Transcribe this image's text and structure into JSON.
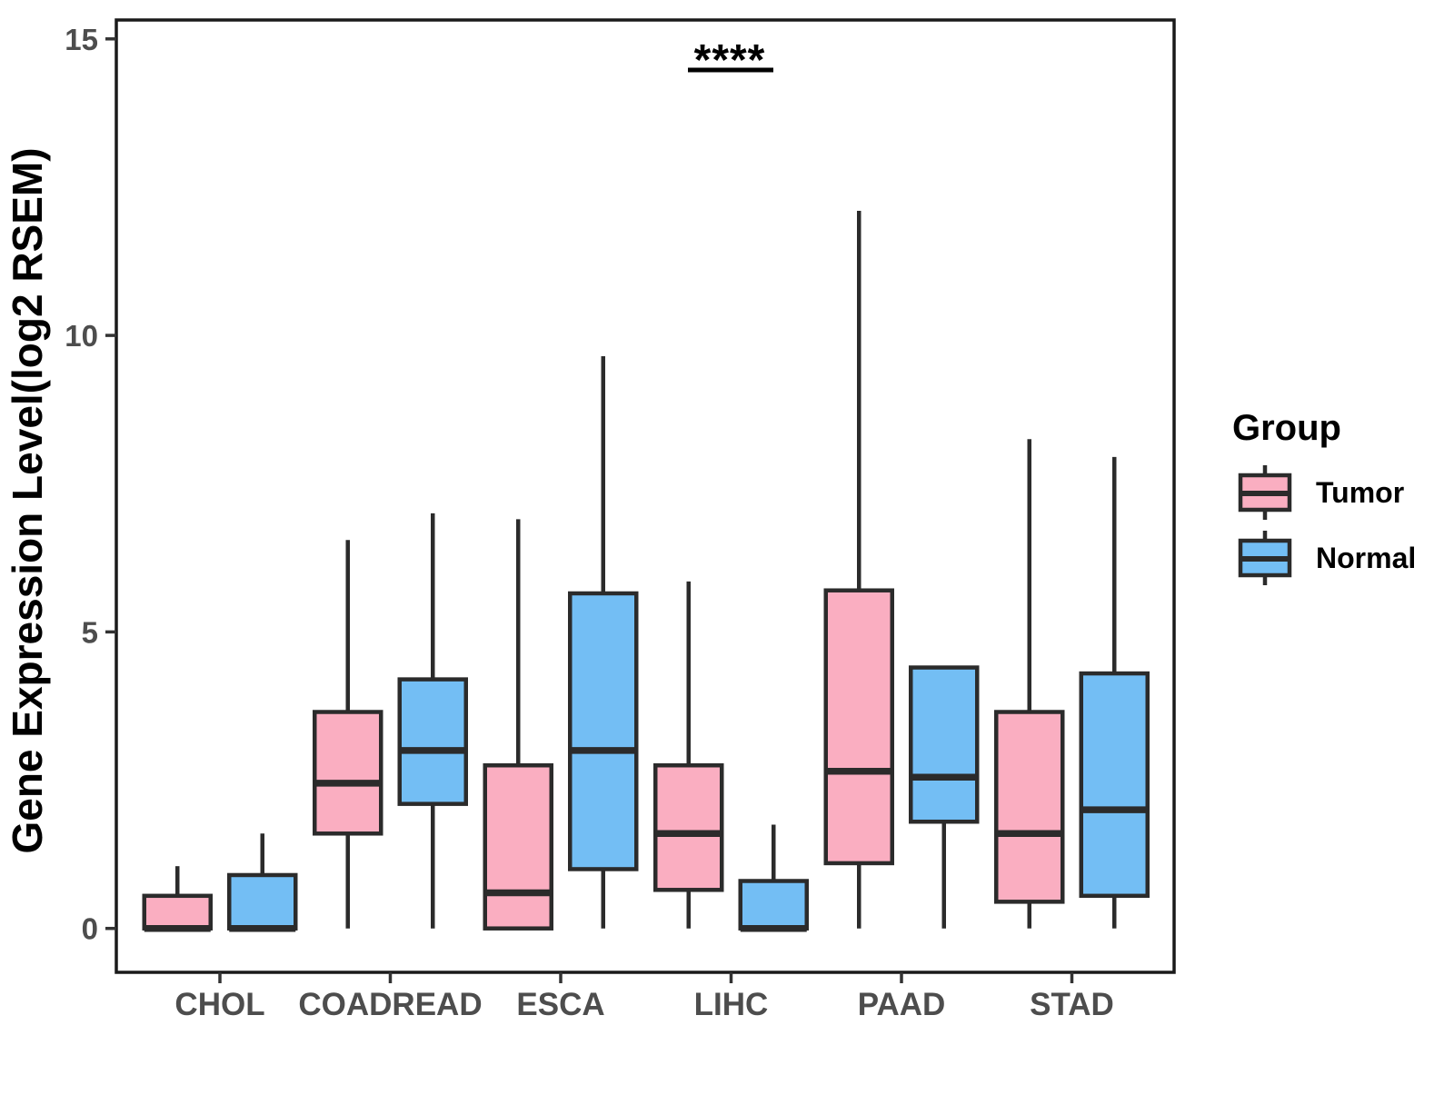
{
  "chart_data": {
    "type": "boxplot",
    "title": "",
    "xlabel": "",
    "ylabel": "Gene Expression Level(log2 RSEM)",
    "ylim": [
      -0.75,
      15.3
    ],
    "yticks": [
      0,
      5,
      10,
      15
    ],
    "categories": [
      "CHOL",
      "COADREAD",
      "ESCA",
      "LIHC",
      "PAAD",
      "STAD"
    ],
    "stat_labels": [
      "min",
      "q1",
      "median",
      "q3",
      "max"
    ],
    "series": [
      {
        "name": "Tumor",
        "color": "#FAAEC1",
        "stats": [
          [
            0,
            0,
            0,
            0.55,
            1.05
          ],
          [
            0,
            1.6,
            2.45,
            3.65,
            6.55
          ],
          [
            0,
            0,
            0.6,
            2.75,
            6.9
          ],
          [
            0,
            0.65,
            1.6,
            2.75,
            5.85
          ],
          [
            0,
            1.1,
            2.65,
            5.7,
            12.1
          ],
          [
            0,
            0.45,
            1.6,
            3.65,
            8.25
          ]
        ]
      },
      {
        "name": "Normal",
        "color": "#73BEF4",
        "stats": [
          [
            0,
            0,
            0,
            0.9,
            1.6
          ],
          [
            0,
            2.1,
            3.0,
            4.2,
            7.0
          ],
          [
            0,
            1.0,
            3.0,
            5.65,
            9.65
          ],
          [
            0,
            0,
            0,
            0.8,
            1.75
          ],
          [
            0,
            1.8,
            2.55,
            4.4,
            4.4
          ],
          [
            0,
            0.55,
            2.0,
            4.3,
            7.95
          ]
        ]
      }
    ],
    "annotation": {
      "text": "****",
      "over_category": "LIHC"
    },
    "legend": {
      "title": "Group",
      "position": "right"
    },
    "colors": {
      "box_border": "#2B2B2B",
      "axis_text": "#4D4D4D",
      "panel_border": "#1A1A1A",
      "tumor_fill": "#FAAEC1",
      "normal_fill": "#73BEF4"
    },
    "grid": false
  }
}
